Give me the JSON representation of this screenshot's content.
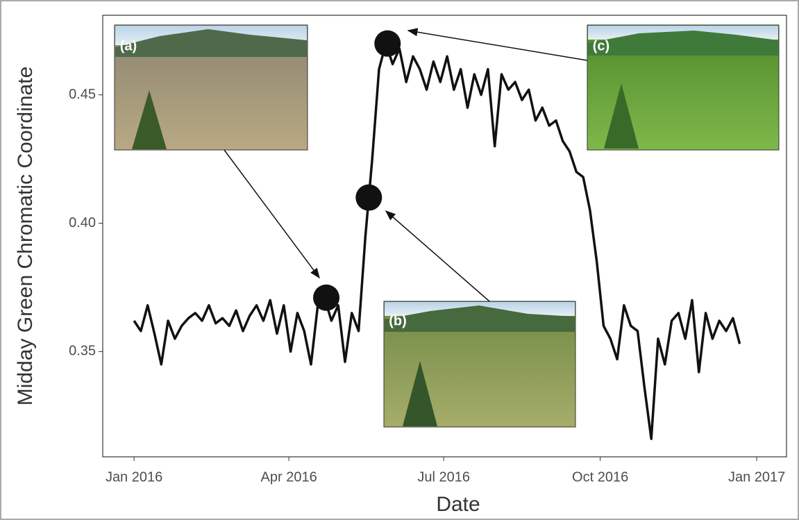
{
  "chart_data": {
    "type": "line",
    "x_label": "Date",
    "y_label": "Midday Green Chromatic Coordinate",
    "x": [
      0,
      4,
      8,
      12,
      16,
      20,
      24,
      28,
      32,
      36,
      40,
      44,
      48,
      52,
      56,
      60,
      64,
      68,
      72,
      76,
      80,
      84,
      88,
      92,
      96,
      100,
      104,
      108,
      112,
      116,
      120,
      124,
      128,
      132,
      136,
      140,
      144,
      148,
      152,
      156,
      160,
      164,
      168,
      172,
      176,
      180,
      184,
      188,
      192,
      196,
      200,
      204,
      208,
      212,
      216,
      220,
      224,
      228,
      232,
      236,
      240,
      244,
      248,
      252,
      256,
      260,
      264,
      268,
      272,
      276,
      280,
      284,
      288,
      292,
      296,
      300,
      304,
      308,
      312,
      316,
      320,
      324,
      328,
      332,
      336,
      340,
      344,
      348,
      352,
      356
    ],
    "series": [
      {
        "color": "#111111",
        "values": [
          0.362,
          0.358,
          0.368,
          0.357,
          0.345,
          0.362,
          0.355,
          0.36,
          0.363,
          0.365,
          0.362,
          0.368,
          0.361,
          0.363,
          0.36,
          0.366,
          0.358,
          0.364,
          0.368,
          0.362,
          0.37,
          0.357,
          0.368,
          0.35,
          0.365,
          0.358,
          0.345,
          0.368,
          0.371,
          0.362,
          0.368,
          0.346,
          0.365,
          0.358,
          0.395,
          0.425,
          0.46,
          0.47,
          0.462,
          0.468,
          0.455,
          0.465,
          0.46,
          0.452,
          0.463,
          0.455,
          0.465,
          0.452,
          0.46,
          0.445,
          0.458,
          0.45,
          0.46,
          0.43,
          0.458,
          0.452,
          0.455,
          0.448,
          0.452,
          0.44,
          0.445,
          0.438,
          0.44,
          0.432,
          0.428,
          0.42,
          0.418,
          0.405,
          0.385,
          0.36,
          0.355,
          0.347,
          0.368,
          0.36,
          0.358,
          0.336,
          0.316,
          0.355,
          0.345,
          0.362,
          0.365,
          0.355,
          0.37,
          0.342,
          0.365,
          0.355,
          0.362,
          0.358,
          0.363,
          0.353
        ]
      }
    ],
    "highlights": {
      "x": [
        113,
        138,
        149
      ],
      "values": [
        0.371,
        0.41,
        0.47
      ],
      "labels": [
        "(a)",
        "(b)",
        "(c)"
      ]
    },
    "xlim": [
      -18.4,
      383.5
    ],
    "ylim": [
      0.309,
      0.481
    ],
    "xticks": [
      {
        "value": 0,
        "label": "Jan 2016"
      },
      {
        "value": 91,
        "label": "Apr 2016"
      },
      {
        "value": 182,
        "label": "Jul 2016"
      },
      {
        "value": 274,
        "label": "Oct 2016"
      },
      {
        "value": 366,
        "label": "Jan 2017"
      }
    ],
    "yticks": [
      {
        "value": 0.35,
        "label": "0.35"
      },
      {
        "value": 0.4,
        "label": "0.40"
      },
      {
        "value": 0.45,
        "label": "0.45"
      }
    ]
  }
}
